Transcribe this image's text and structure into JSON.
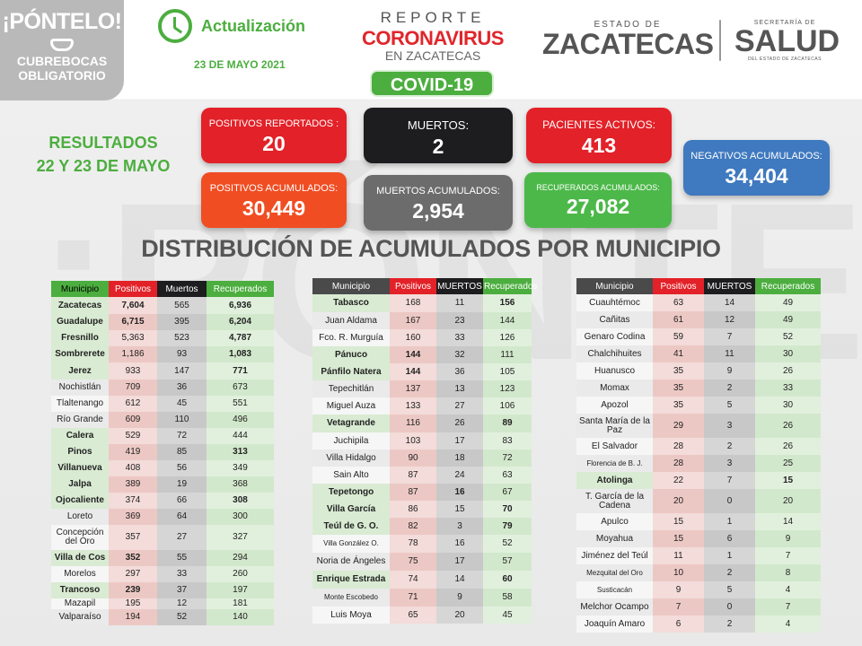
{
  "header": {
    "badge_title": "¡PÓNTELO!",
    "badge_sub1": "CUBREBOCAS",
    "badge_sub2": "OBLIGATORIO",
    "update_label": "Actualización",
    "update_date": "23 DE MAYO 2021",
    "report_line1": "REPORTE",
    "report_line2": "CORONAVIRUS",
    "report_line3": "EN ZACATECAS",
    "covid_badge": "COVID-19",
    "state_small": "ESTADO DE",
    "state_name": "ZACATECAS",
    "ssa_small": "SECRETARÍA DE",
    "ssa_name": "SALUD",
    "ssa_sub": "DEL ESTADO DE ZACATECAS",
    "watermark": "¡PÓNTELO!"
  },
  "results": {
    "line1": "RESULTADOS",
    "line2": "22 Y 23 DE MAYO"
  },
  "cards": {
    "positivos_reportados": {
      "label": "POSITIVOS REPORTADOS  :",
      "value": "20",
      "color": "#e32128"
    },
    "muertos": {
      "label": "MUERTOS:",
      "value": "2",
      "color": "#1d1d1f"
    },
    "pacientes_activos": {
      "label": "PACIENTES ACTIVOS:",
      "value": "413",
      "color": "#e32128"
    },
    "negativos_acumulados": {
      "label": "NEGATIVOS ACUMULADOS:",
      "value": "34,404",
      "color": "#3f79bf"
    },
    "positivos_acumulados": {
      "label": "POSITIVOS ACUMULADOS:",
      "value": "30,449",
      "color": "#f04d23"
    },
    "muertos_acumulados": {
      "label": "MUERTOS  ACUMULADOS:",
      "value": "2,954",
      "color": "#6c6c6c"
    },
    "recuperados_acumulados": {
      "label": "RECUPERADOS ACUMULADOS:",
      "value": "27,082",
      "color": "#4cb849"
    }
  },
  "section_title": "DISTRIBUCIÓN DE ACUMULADOS POR MUNICIPIO",
  "tables": [
    {
      "headers": [
        "Municipio",
        "Positivos",
        "Muertos",
        "Recuperados"
      ],
      "rows": [
        [
          "Zacatecas",
          "7,604",
          "565",
          "6,936"
        ],
        [
          "Guadalupe",
          "6,715",
          "395",
          "6,204"
        ],
        [
          "Fresnillo",
          "5,363",
          "523",
          "4,787"
        ],
        [
          "Sombrerete",
          "1,186",
          "93",
          "1,083"
        ],
        [
          "Jerez",
          "933",
          "147",
          "771"
        ],
        [
          "Nochistlán",
          "709",
          "36",
          "673"
        ],
        [
          "Tlaltenango",
          "612",
          "45",
          "551"
        ],
        [
          "Río Grande",
          "609",
          "110",
          "496"
        ],
        [
          "Calera",
          "529",
          "72",
          "444"
        ],
        [
          "Pinos",
          "419",
          "85",
          "313"
        ],
        [
          "Villanueva",
          "408",
          "56",
          "349"
        ],
        [
          "Jalpa",
          "389",
          "19",
          "368"
        ],
        [
          "Ojocaliente",
          "374",
          "66",
          "308"
        ],
        [
          "Loreto",
          "369",
          "64",
          "300"
        ],
        [
          "Concepción del Oro",
          "357",
          "27",
          "327"
        ],
        [
          "Villa de Cos",
          "352",
          "55",
          "294"
        ],
        [
          "Morelos",
          "297",
          "33",
          "260"
        ],
        [
          "Trancoso",
          "239",
          "37",
          "197"
        ],
        [
          "Mazapil",
          "195",
          "12",
          "181"
        ],
        [
          "Valparaíso",
          "194",
          "52",
          "140"
        ]
      ]
    },
    {
      "headers": [
        "Municipio",
        "Positivos",
        "MUERTOS",
        "Recuperados"
      ],
      "rows": [
        [
          "Tabasco",
          "168",
          "11",
          "156"
        ],
        [
          "Juan Aldama",
          "167",
          "23",
          "144"
        ],
        [
          "Fco. R. Murguía",
          "160",
          "33",
          "126"
        ],
        [
          "Pánuco",
          "144",
          "32",
          "111"
        ],
        [
          "Pánfilo Natera",
          "144",
          "36",
          "105"
        ],
        [
          "Tepechitlán",
          "137",
          "13",
          "123"
        ],
        [
          "Miguel Auza",
          "133",
          "27",
          "106"
        ],
        [
          "Vetagrande",
          "116",
          "26",
          "89"
        ],
        [
          "Juchipila",
          "103",
          "17",
          "83"
        ],
        [
          "Villa Hidalgo",
          "90",
          "18",
          "72"
        ],
        [
          "Sain Alto",
          "87",
          "24",
          "63"
        ],
        [
          "Tepetongo",
          "87",
          "16",
          "67"
        ],
        [
          "Villa García",
          "86",
          "15",
          "70"
        ],
        [
          "Teúl de G. O.",
          "82",
          "3",
          "79"
        ],
        [
          "Villa González  O.",
          "78",
          "16",
          "52"
        ],
        [
          "Noria de Ángeles",
          "75",
          "17",
          "57"
        ],
        [
          "Enrique Estrada",
          "74",
          "14",
          "60"
        ],
        [
          "Monte Escobedo",
          "71",
          "9",
          "58"
        ],
        [
          "Luis Moya",
          "65",
          "20",
          "45"
        ]
      ]
    },
    {
      "headers": [
        "Municipio",
        "Positivos",
        "MUERTOS",
        "Recuperados"
      ],
      "rows": [
        [
          "Cuauhtémoc",
          "63",
          "14",
          "49"
        ],
        [
          "Cañitas",
          "61",
          "12",
          "49"
        ],
        [
          "Genaro Codina",
          "59",
          "7",
          "52"
        ],
        [
          "Chalchihuites",
          "41",
          "11",
          "30"
        ],
        [
          "Huanusco",
          "35",
          "9",
          "26"
        ],
        [
          "Momax",
          "35",
          "2",
          "33"
        ],
        [
          "Apozol",
          "35",
          "5",
          "30"
        ],
        [
          "Santa María de la Paz",
          "29",
          "3",
          "26"
        ],
        [
          "El Salvador",
          "28",
          "2",
          "26"
        ],
        [
          "Florencia de B. J.",
          "28",
          "3",
          "25"
        ],
        [
          "Atolinga",
          "22",
          "7",
          "15"
        ],
        [
          "T. García de la Cadena",
          "20",
          "0",
          "20"
        ],
        [
          "Apulco",
          "15",
          "1",
          "14"
        ],
        [
          "Moyahua",
          "15",
          "6",
          "9"
        ],
        [
          "Jiménez del Teúl",
          "11",
          "1",
          "7"
        ],
        [
          "Mezquital del Oro",
          "10",
          "2",
          "8"
        ],
        [
          "Susticacán",
          "9",
          "5",
          "4"
        ],
        [
          "Melchor Ocampo",
          "7",
          "0",
          "7"
        ],
        [
          "Joaquín Amaro",
          "6",
          "2",
          "4"
        ]
      ]
    }
  ]
}
